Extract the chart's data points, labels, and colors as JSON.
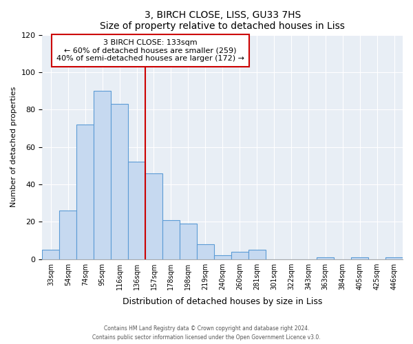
{
  "title": "3, BIRCH CLOSE, LISS, GU33 7HS",
  "subtitle": "Size of property relative to detached houses in Liss",
  "xlabel": "Distribution of detached houses by size in Liss",
  "ylabel": "Number of detached properties",
  "bar_labels": [
    "33sqm",
    "54sqm",
    "74sqm",
    "95sqm",
    "116sqm",
    "136sqm",
    "157sqm",
    "178sqm",
    "198sqm",
    "219sqm",
    "240sqm",
    "260sqm",
    "281sqm",
    "301sqm",
    "322sqm",
    "343sqm",
    "363sqm",
    "384sqm",
    "405sqm",
    "425sqm",
    "446sqm"
  ],
  "bar_values": [
    5,
    26,
    72,
    90,
    83,
    52,
    46,
    21,
    19,
    8,
    2,
    4,
    5,
    0,
    0,
    0,
    1,
    0,
    1,
    0,
    1
  ],
  "bar_color": "#c6d9f0",
  "bar_edge_color": "#5b9bd5",
  "vline_color": "#cc0000",
  "annotation_title": "3 BIRCH CLOSE: 133sqm",
  "annotation_line1": "← 60% of detached houses are smaller (259)",
  "annotation_line2": "40% of semi-detached houses are larger (172) →",
  "annotation_box_color": "#cc0000",
  "ylim": [
    0,
    120
  ],
  "yticks": [
    0,
    20,
    40,
    60,
    80,
    100,
    120
  ],
  "footer1": "Contains HM Land Registry data © Crown copyright and database right 2024.",
  "footer2": "Contains public sector information licensed under the Open Government Licence v3.0.",
  "bg_color": "#e8eef5"
}
